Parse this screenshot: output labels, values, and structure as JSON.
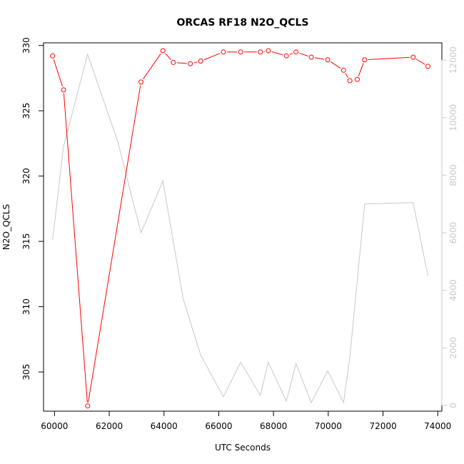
{
  "chart_data": {
    "type": "line",
    "title": "ORCAS RF18 N2O_QCLS",
    "xlabel": "UTC Seconds",
    "ylabel": "N2O_QCLS",
    "xlim": [
      59600,
      74150
    ],
    "ylim": [
      302,
      330.2
    ],
    "y2lim": [
      -200,
      12600
    ],
    "x_ticks": [
      60000,
      62000,
      64000,
      66000,
      68000,
      70000,
      72000,
      74000
    ],
    "y_ticks": [
      305,
      310,
      315,
      320,
      325,
      330
    ],
    "y2_ticks": [
      0,
      2000,
      4000,
      6000,
      8000,
      10000,
      12000
    ],
    "grid": false,
    "legend": "none",
    "series": [
      {
        "axis": "left",
        "color": "#ff0000",
        "marker": "open-circle",
        "x": [
          59930,
          60330,
          61210,
          63160,
          63960,
          64340,
          64960,
          65340,
          66170,
          66800,
          67520,
          67810,
          68470,
          68820,
          69380,
          69980,
          70560,
          70790,
          71060,
          71330,
          73100,
          73640
        ],
        "y": [
          329.2,
          326.6,
          302.4,
          327.2,
          329.6,
          328.7,
          328.6,
          328.8,
          329.5,
          329.5,
          329.5,
          329.6,
          329.2,
          329.5,
          329.1,
          328.9,
          328.1,
          327.3,
          327.4,
          328.9,
          329.1,
          328.4
        ]
      },
      {
        "axis": "right",
        "color": "#c8c8c8",
        "marker": "none",
        "x": [
          59930,
          60330,
          61210,
          62300,
          63160,
          63960,
          64700,
          65340,
          66170,
          66800,
          67520,
          67810,
          68470,
          68820,
          69380,
          69980,
          70560,
          70790,
          71330,
          73100,
          73640
        ],
        "y": [
          5750,
          9000,
          12200,
          9200,
          6000,
          7800,
          3700,
          1750,
          300,
          1500,
          350,
          1500,
          150,
          1450,
          100,
          1200,
          100,
          1700,
          7000,
          7050,
          4500
        ]
      }
    ]
  }
}
